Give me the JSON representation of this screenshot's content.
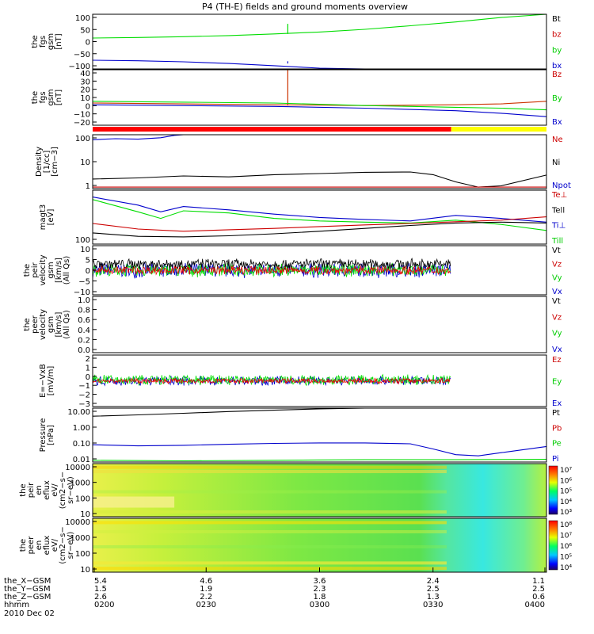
{
  "title": "P4 (TH-E) fields and ground moments overview",
  "date": "2010 Dec 02",
  "colors": {
    "black": "#000000",
    "red": "#ff0000",
    "green": "#00dd00",
    "blue": "#0000cc",
    "yellow": "#ffff00"
  },
  "chart_data": [
    {
      "type": "line",
      "ylabel": [
        "the",
        "fgs",
        "gsm",
        "[nT]"
      ],
      "yticks": [
        "100",
        "50",
        "0",
        "−50",
        "−100"
      ],
      "ylim": [
        -100,
        100
      ],
      "legend": [
        {
          "label": "Bt",
          "color": "#000000"
        },
        {
          "label": "bz",
          "color": "#cc0000"
        },
        {
          "label": "by",
          "color": "#00cc00"
        },
        {
          "label": "bx",
          "color": "#0000cc"
        }
      ],
      "series": [
        {
          "name": "by",
          "color": "#00dd00",
          "x": [
            0,
            0.1,
            0.2,
            0.3,
            0.4,
            0.5,
            0.6,
            0.7,
            0.8,
            0.9,
            1.0
          ],
          "y": [
            13,
            15,
            18,
            22,
            28,
            35,
            45,
            58,
            72,
            88,
            108
          ],
          "spike": {
            "x": 0.43,
            "y": 65
          }
        },
        {
          "name": "bx",
          "color": "#0000cc",
          "x": [
            0,
            0.1,
            0.2,
            0.3,
            0.4,
            0.5,
            0.6
          ],
          "y": [
            -68,
            -70,
            -74,
            -80,
            -88,
            -97,
            -110
          ],
          "spike": {
            "x": 0.43,
            "y": -72
          }
        }
      ]
    },
    {
      "type": "line",
      "ylabel": [
        "the",
        "fgs",
        "gsm",
        "[nT]"
      ],
      "yticks": [
        "40",
        "30",
        "20",
        "10",
        "0",
        "−10",
        "−20"
      ],
      "ylim": [
        -25,
        40
      ],
      "legend": [
        {
          "label": "Bz",
          "color": "#cc0000"
        },
        {
          "label": "By",
          "color": "#00cc00"
        },
        {
          "label": "Bx",
          "color": "#0000cc"
        }
      ],
      "series": [
        {
          "name": "Bz",
          "color": "#cc3300",
          "x": [
            0,
            0.2,
            0.4,
            0.6,
            0.8,
            0.9,
            1.0
          ],
          "y": [
            1,
            0,
            -1,
            -2,
            -1,
            0,
            3
          ],
          "spike": {
            "x": 0.43,
            "y": 40
          }
        },
        {
          "name": "By",
          "color": "#00dd00",
          "x": [
            0,
            0.2,
            0.4,
            0.6,
            0.8,
            0.9,
            1.0
          ],
          "y": [
            3,
            2,
            1,
            -2,
            -4,
            -5,
            -7
          ]
        },
        {
          "name": "Bx",
          "color": "#0000cc",
          "x": [
            0,
            0.2,
            0.4,
            0.6,
            0.8,
            0.9,
            1.0
          ],
          "y": [
            -1,
            -2,
            -3,
            -5,
            -8,
            -11,
            -15
          ]
        }
      ]
    },
    {
      "type": "line",
      "ylabel": [
        "Density",
        "[1/cc]",
        "[cm−3]"
      ],
      "yticks": [
        "100",
        "10",
        "1"
      ],
      "ylim": [
        0.6,
        150
      ],
      "legend": [
        {
          "label": "Ne",
          "color": "#cc0000"
        },
        {
          "label": "Ni",
          "color": "#000000"
        },
        {
          "label": "Npot",
          "color": "#0000cc"
        }
      ],
      "series": [
        {
          "name": "Ni",
          "color": "#000000",
          "x": [
            0,
            0.1,
            0.2,
            0.3,
            0.4,
            0.5,
            0.6,
            0.7,
            0.75,
            0.8,
            0.85,
            0.9,
            1.0
          ],
          "y": [
            1.6,
            1.8,
            2.2,
            2.0,
            2.5,
            2.8,
            3.2,
            3.3,
            2.5,
            1.2,
            0.7,
            0.8,
            2.4
          ]
        },
        {
          "name": "Ne",
          "color": "#cc0000",
          "x": [
            0,
            1
          ],
          "y": [
            0.7,
            0.7
          ]
        },
        {
          "name": "Npot",
          "color": "#0000cc",
          "x": [
            0,
            0.05,
            0.1,
            0.15,
            0.18,
            0.2
          ],
          "y": [
            90,
            100,
            95,
            110,
            140,
            190
          ]
        }
      ]
    },
    {
      "type": "line",
      "ylabel": [
        "magt3",
        "[eV]"
      ],
      "yticks": [
        "100"
      ],
      "ylim": [
        80,
        3000
      ],
      "legend": [
        {
          "label": "Te⊥",
          "color": "#cc0000"
        },
        {
          "label": "Tell",
          "color": "#000000"
        },
        {
          "label": "Ti⊥",
          "color": "#0000cc"
        },
        {
          "label": "Till",
          "color": "#00cc00"
        }
      ],
      "series": [
        {
          "name": "Till",
          "color": "#00dd00",
          "x": [
            0,
            0.1,
            0.15,
            0.2,
            0.3,
            0.4,
            0.5,
            0.6,
            0.7,
            0.8,
            0.9,
            1.0
          ],
          "y": [
            1600,
            700,
            450,
            750,
            650,
            450,
            380,
            350,
            330,
            400,
            300,
            200
          ]
        },
        {
          "name": "Ti⊥",
          "color": "#0000cc",
          "x": [
            0,
            0.1,
            0.15,
            0.2,
            0.3,
            0.4,
            0.5,
            0.6,
            0.7,
            0.8,
            0.9,
            1.0
          ],
          "y": [
            1900,
            1100,
            700,
            1000,
            800,
            600,
            480,
            420,
            380,
            550,
            450,
            350
          ]
        },
        {
          "name": "Te⊥",
          "color": "#cc0000",
          "x": [
            0,
            0.1,
            0.2,
            0.3,
            0.4,
            0.5,
            0.6,
            0.7,
            0.8,
            0.9,
            1.0
          ],
          "y": [
            320,
            220,
            190,
            210,
            230,
            260,
            290,
            320,
            360,
            400,
            500
          ]
        },
        {
          "name": "Tell",
          "color": "#000000",
          "x": [
            0,
            0.1,
            0.2,
            0.3,
            0.4,
            0.5,
            0.6,
            0.7,
            0.8,
            0.9,
            1.0
          ],
          "y": [
            170,
            135,
            130,
            140,
            160,
            190,
            230,
            280,
            330,
            350,
            330
          ]
        }
      ]
    },
    {
      "type": "line",
      "ylabel": [
        "the",
        "peir",
        "velocity",
        "gsm",
        "[km/s]",
        "(All Qs)"
      ],
      "yticks": [
        "10",
        "5",
        "0",
        "−5",
        "−10"
      ],
      "ylim": [
        -10,
        10
      ],
      "legend": [
        {
          "label": "Vt",
          "color": "#000000"
        },
        {
          "label": "Vz",
          "color": "#cc0000"
        },
        {
          "label": "Vy",
          "color": "#00cc00"
        },
        {
          "label": "Vx",
          "color": "#0000cc"
        }
      ],
      "series": [
        {
          "name": "Vx",
          "color": "#0000cc",
          "noise": {
            "x0": 0,
            "x1": 0.79,
            "center": 0,
            "amp": 3.5
          }
        },
        {
          "name": "Vy",
          "color": "#00dd00",
          "noise": {
            "x0": 0,
            "x1": 0.79,
            "center": 0,
            "amp": 3
          }
        },
        {
          "name": "Vt",
          "color": "#000000",
          "noise": {
            "x0": 0,
            "x1": 0.79,
            "center": 2.5,
            "amp": 2.5
          }
        },
        {
          "name": "Vz",
          "color": "#ee0000",
          "noise": {
            "x0": 0,
            "x1": 0.79,
            "center": 0,
            "amp": 2
          }
        }
      ]
    },
    {
      "type": "line",
      "ylabel": [
        "the",
        "peer",
        "velocity",
        "gsm",
        "[km/s]",
        "(All Qs)"
      ],
      "yticks": [
        "1.0",
        "0.8",
        "0.6",
        "0.4",
        "0.2",
        "0.0"
      ],
      "ylim": [
        0,
        1
      ],
      "legend": [
        {
          "label": "Vt",
          "color": "#000000"
        },
        {
          "label": "Vz",
          "color": "#cc0000"
        },
        {
          "label": "Vy",
          "color": "#00cc00"
        },
        {
          "label": "Vx",
          "color": "#0000cc"
        }
      ],
      "series": []
    },
    {
      "type": "line",
      "ylabel": [
        "E=−VxB",
        "[mV/m]"
      ],
      "yticks": [
        "2",
        "1",
        "0",
        "−1",
        "−2",
        "−3"
      ],
      "ylim": [
        -3,
        3
      ],
      "legend": [
        {
          "label": "Ez",
          "color": "#cc0000"
        },
        {
          "label": "Ey",
          "color": "#00cc00"
        },
        {
          "label": "Ex",
          "color": "#0000cc"
        }
      ],
      "series": [
        {
          "name": "Ex",
          "color": "#0000cc",
          "noise": {
            "x0": 0,
            "x1": 0.79,
            "center": 0,
            "amp": 0.6
          }
        },
        {
          "name": "Ey",
          "color": "#00dd00",
          "noise": {
            "x0": 0,
            "x1": 0.79,
            "center": 0.1,
            "amp": 0.7
          }
        },
        {
          "name": "Ez",
          "color": "#ee0000",
          "noise": {
            "x0": 0,
            "x1": 0.79,
            "center": 0,
            "amp": 0.35
          }
        }
      ]
    },
    {
      "type": "line",
      "ylabel": [
        "Pressure",
        "[nPa]"
      ],
      "yticks": [
        "10.00",
        "1.00",
        "0.10",
        "0.01"
      ],
      "ylim": [
        0.01,
        30
      ],
      "legend": [
        {
          "label": "Pt",
          "color": "#000000"
        },
        {
          "label": "Pb",
          "color": "#cc0000"
        },
        {
          "label": "Pe",
          "color": "#00cc00"
        },
        {
          "label": "Pi",
          "color": "#0000cc"
        }
      ],
      "series": [
        {
          "name": "Pt",
          "color": "#000000",
          "x": [
            0,
            0.1,
            0.2,
            0.3,
            0.4,
            0.5,
            0.6
          ],
          "y": [
            9,
            11,
            14,
            18,
            22,
            27,
            32
          ]
        },
        {
          "name": "Pi",
          "color": "#0000cc",
          "x": [
            0,
            0.1,
            0.2,
            0.3,
            0.4,
            0.5,
            0.6,
            0.7,
            0.75,
            0.8,
            0.85,
            0.9,
            1.0
          ],
          "y": [
            0.13,
            0.11,
            0.12,
            0.14,
            0.16,
            0.17,
            0.17,
            0.15,
            0.07,
            0.03,
            0.025,
            0.04,
            0.1
          ]
        },
        {
          "name": "Pe",
          "color": "#00dd00",
          "x": [
            0,
            0.2,
            0.4,
            0.6,
            0.8,
            1.0
          ],
          "y": [
            0.013,
            0.012,
            0.013,
            0.014,
            0.014,
            0.015
          ]
        }
      ]
    },
    {
      "type": "heatmap",
      "ylabel": [
        "the",
        "peir",
        "en",
        "eflux",
        "eV/",
        "(cm2−s−",
        "sr−eV)"
      ],
      "yticks": [
        "10000",
        "1000",
        "100",
        "10"
      ],
      "colorbar": {
        "ticks": [
          "10⁷",
          "10⁶",
          "10⁵",
          "10⁴",
          "10³"
        ],
        "min": 3,
        "max": 7.6
      }
    },
    {
      "type": "heatmap",
      "ylabel": [
        "the",
        "peer",
        "en",
        "eflux",
        "eV/",
        "(cm2−s−",
        "sr−eV)"
      ],
      "yticks": [
        "10000",
        "1000",
        "100",
        "10"
      ],
      "colorbar": {
        "ticks": [
          "10⁸",
          "10⁷",
          "10⁶",
          "10⁵",
          "10⁴"
        ],
        "min": 3.6,
        "max": 8.2
      }
    }
  ],
  "status_bar": {
    "x0": 0,
    "x1": 1,
    "split": 0.79,
    "colors": [
      "#ff0000",
      "#ffff00"
    ]
  },
  "xaxis": {
    "rows": [
      {
        "label": "the_X−GSM",
        "values": [
          "5.4",
          "4.6",
          "3.6",
          "2.4",
          "1.1"
        ]
      },
      {
        "label": "the_Y−GSM",
        "values": [
          "1.5",
          "1.9",
          "2.3",
          "2.5",
          "2.5"
        ]
      },
      {
        "label": "the_Z−GSM",
        "values": [
          "2.6",
          "2.2",
          "1.8",
          "1.3",
          "0.6"
        ]
      },
      {
        "label": "hhmm",
        "values": [
          "0200",
          "0230",
          "0300",
          "0330",
          "0400"
        ]
      }
    ]
  }
}
